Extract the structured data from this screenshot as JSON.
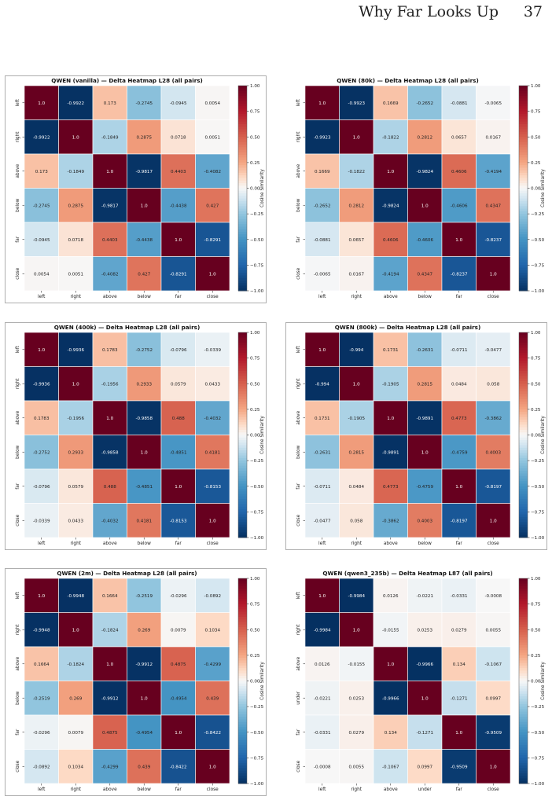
{
  "header": {
    "running_title": "Why Far Looks Up",
    "page_number": "37"
  },
  "colors": {
    "low": "#053061",
    "mid": "#f7f7f7",
    "high": "#67001f"
  },
  "colorbar": {
    "label": "Cosine Similarity",
    "ticks": [
      "1.00",
      "0.75",
      "0.50",
      "0.25",
      "0.00",
      "−0.25",
      "−0.50",
      "−0.75",
      "−1.00"
    ]
  },
  "chart_data": [
    {
      "type": "heatmap",
      "title": "QWEN (vanilla) — Delta Heatmap L28 (all pairs)",
      "rows": [
        "left",
        "right",
        "above",
        "below",
        "far",
        "close"
      ],
      "cols": [
        "left",
        "right",
        "above",
        "below",
        "far",
        "close"
      ],
      "vmin": -1,
      "vmax": 1,
      "values": [
        [
          "1.0",
          "-0.9922",
          "0.173",
          "-0.2745",
          "-0.0945",
          "0.0054"
        ],
        [
          "-0.9922",
          "1.0",
          "-0.1849",
          "0.2875",
          "0.0718",
          "0.0051"
        ],
        [
          "0.173",
          "-0.1849",
          "1.0",
          "-0.9817",
          "0.4403",
          "-0.4082"
        ],
        [
          "-0.2745",
          "0.2875",
          "-0.9817",
          "1.0",
          "-0.4438",
          "0.427"
        ],
        [
          "-0.0945",
          "0.0718",
          "0.4403",
          "-0.4438",
          "1.0",
          "-0.8291"
        ],
        [
          "0.0054",
          "0.0051",
          "-0.4082",
          "0.427",
          "-0.8291",
          "1.0"
        ]
      ]
    },
    {
      "type": "heatmap",
      "title": "QWEN (80k) — Delta Heatmap L28 (all pairs)",
      "rows": [
        "left",
        "right",
        "above",
        "below",
        "far",
        "close"
      ],
      "cols": [
        "left",
        "right",
        "above",
        "below",
        "far",
        "close"
      ],
      "vmin": -1,
      "vmax": 1,
      "values": [
        [
          "1.0",
          "-0.9923",
          "0.1669",
          "-0.2652",
          "-0.0881",
          "-0.0065"
        ],
        [
          "-0.9923",
          "1.0",
          "-0.1822",
          "0.2812",
          "0.0657",
          "0.0167"
        ],
        [
          "0.1669",
          "-0.1822",
          "1.0",
          "-0.9824",
          "0.4606",
          "-0.4194"
        ],
        [
          "-0.2652",
          "0.2812",
          "-0.9824",
          "1.0",
          "-0.4606",
          "0.4347"
        ],
        [
          "-0.0881",
          "0.0657",
          "0.4606",
          "-0.4606",
          "1.0",
          "-0.8237"
        ],
        [
          "-0.0065",
          "0.0167",
          "-0.4194",
          "0.4347",
          "-0.8237",
          "1.0"
        ]
      ]
    },
    {
      "type": "heatmap",
      "title": "QWEN (400k) — Delta Heatmap L28 (all pairs)",
      "rows": [
        "left",
        "right",
        "above",
        "below",
        "far",
        "close"
      ],
      "cols": [
        "left",
        "right",
        "above",
        "below",
        "far",
        "close"
      ],
      "vmin": -1,
      "vmax": 1,
      "values": [
        [
          "1.0",
          "-0.9936",
          "0.1783",
          "-0.2752",
          "-0.0796",
          "-0.0339"
        ],
        [
          "-0.9936",
          "1.0",
          "-0.1956",
          "0.2933",
          "0.0579",
          "0.0433"
        ],
        [
          "0.1783",
          "-0.1956",
          "1.0",
          "-0.9858",
          "0.488",
          "-0.4032"
        ],
        [
          "-0.2752",
          "0.2933",
          "-0.9858",
          "1.0",
          "-0.4851",
          "0.4181"
        ],
        [
          "-0.0796",
          "0.0579",
          "0.488",
          "-0.4851",
          "1.0",
          "-0.8153"
        ],
        [
          "-0.0339",
          "0.0433",
          "-0.4032",
          "0.4181",
          "-0.8153",
          "1.0"
        ]
      ]
    },
    {
      "type": "heatmap",
      "title": "QWEN (800k) — Delta Heatmap L28 (all pairs)",
      "rows": [
        "left",
        "right",
        "above",
        "below",
        "far",
        "close"
      ],
      "cols": [
        "left",
        "right",
        "above",
        "below",
        "far",
        "close"
      ],
      "vmin": -1,
      "vmax": 1,
      "values": [
        [
          "1.0",
          "-0.994",
          "0.1731",
          "-0.2631",
          "-0.0711",
          "-0.0477"
        ],
        [
          "-0.994",
          "1.0",
          "-0.1905",
          "0.2815",
          "0.0484",
          "0.058"
        ],
        [
          "0.1731",
          "-0.1905",
          "1.0",
          "-0.9891",
          "0.4773",
          "-0.3862"
        ],
        [
          "-0.2631",
          "0.2815",
          "-0.9891",
          "1.0",
          "-0.4759",
          "0.4003"
        ],
        [
          "-0.0711",
          "0.0484",
          "0.4773",
          "-0.4759",
          "1.0",
          "-0.8197"
        ],
        [
          "-0.0477",
          "0.058",
          "-0.3862",
          "0.4003",
          "-0.8197",
          "1.0"
        ]
      ]
    },
    {
      "type": "heatmap",
      "title": "QWEN (2m) — Delta Heatmap L28 (all pairs)",
      "rows": [
        "left",
        "right",
        "above",
        "below",
        "far",
        "close"
      ],
      "cols": [
        "left",
        "right",
        "above",
        "below",
        "far",
        "close"
      ],
      "vmin": -1,
      "vmax": 1,
      "values": [
        [
          "1.0",
          "-0.9948",
          "0.1664",
          "-0.2519",
          "-0.0296",
          "-0.0892"
        ],
        [
          "-0.9948",
          "1.0",
          "-0.1824",
          "0.269",
          "0.0079",
          "0.1034"
        ],
        [
          "0.1664",
          "-0.1824",
          "1.0",
          "-0.9912",
          "0.4875",
          "-0.4299"
        ],
        [
          "-0.2519",
          "0.269",
          "-0.9912",
          "1.0",
          "-0.4954",
          "0.439"
        ],
        [
          "-0.0296",
          "0.0079",
          "0.4875",
          "-0.4954",
          "1.0",
          "-0.8422"
        ],
        [
          "-0.0892",
          "0.1034",
          "-0.4299",
          "0.439",
          "-0.8422",
          "1.0"
        ]
      ]
    },
    {
      "type": "heatmap",
      "title": "QWEN (qwen3_235b) — Delta Heatmap L87 (all pairs)",
      "rows": [
        "left",
        "right",
        "above",
        "under",
        "far",
        "close"
      ],
      "cols": [
        "left",
        "right",
        "above",
        "under",
        "far",
        "close"
      ],
      "vmin": -1,
      "vmax": 1,
      "values": [
        [
          "1.0",
          "-0.9984",
          "0.0126",
          "-0.0221",
          "-0.0331",
          "-0.0008"
        ],
        [
          "-0.9984",
          "1.0",
          "-0.0155",
          "0.0253",
          "0.0279",
          "0.0055"
        ],
        [
          "0.0126",
          "-0.0155",
          "1.0",
          "-0.9966",
          "0.134",
          "-0.1067"
        ],
        [
          "-0.0221",
          "0.0253",
          "-0.9966",
          "1.0",
          "-0.1271",
          "0.0997"
        ],
        [
          "-0.0331",
          "0.0279",
          "0.134",
          "-0.1271",
          "1.0",
          "-0.9509"
        ],
        [
          "-0.0008",
          "0.0055",
          "-0.1067",
          "0.0997",
          "-0.9509",
          "1.0"
        ]
      ]
    }
  ]
}
